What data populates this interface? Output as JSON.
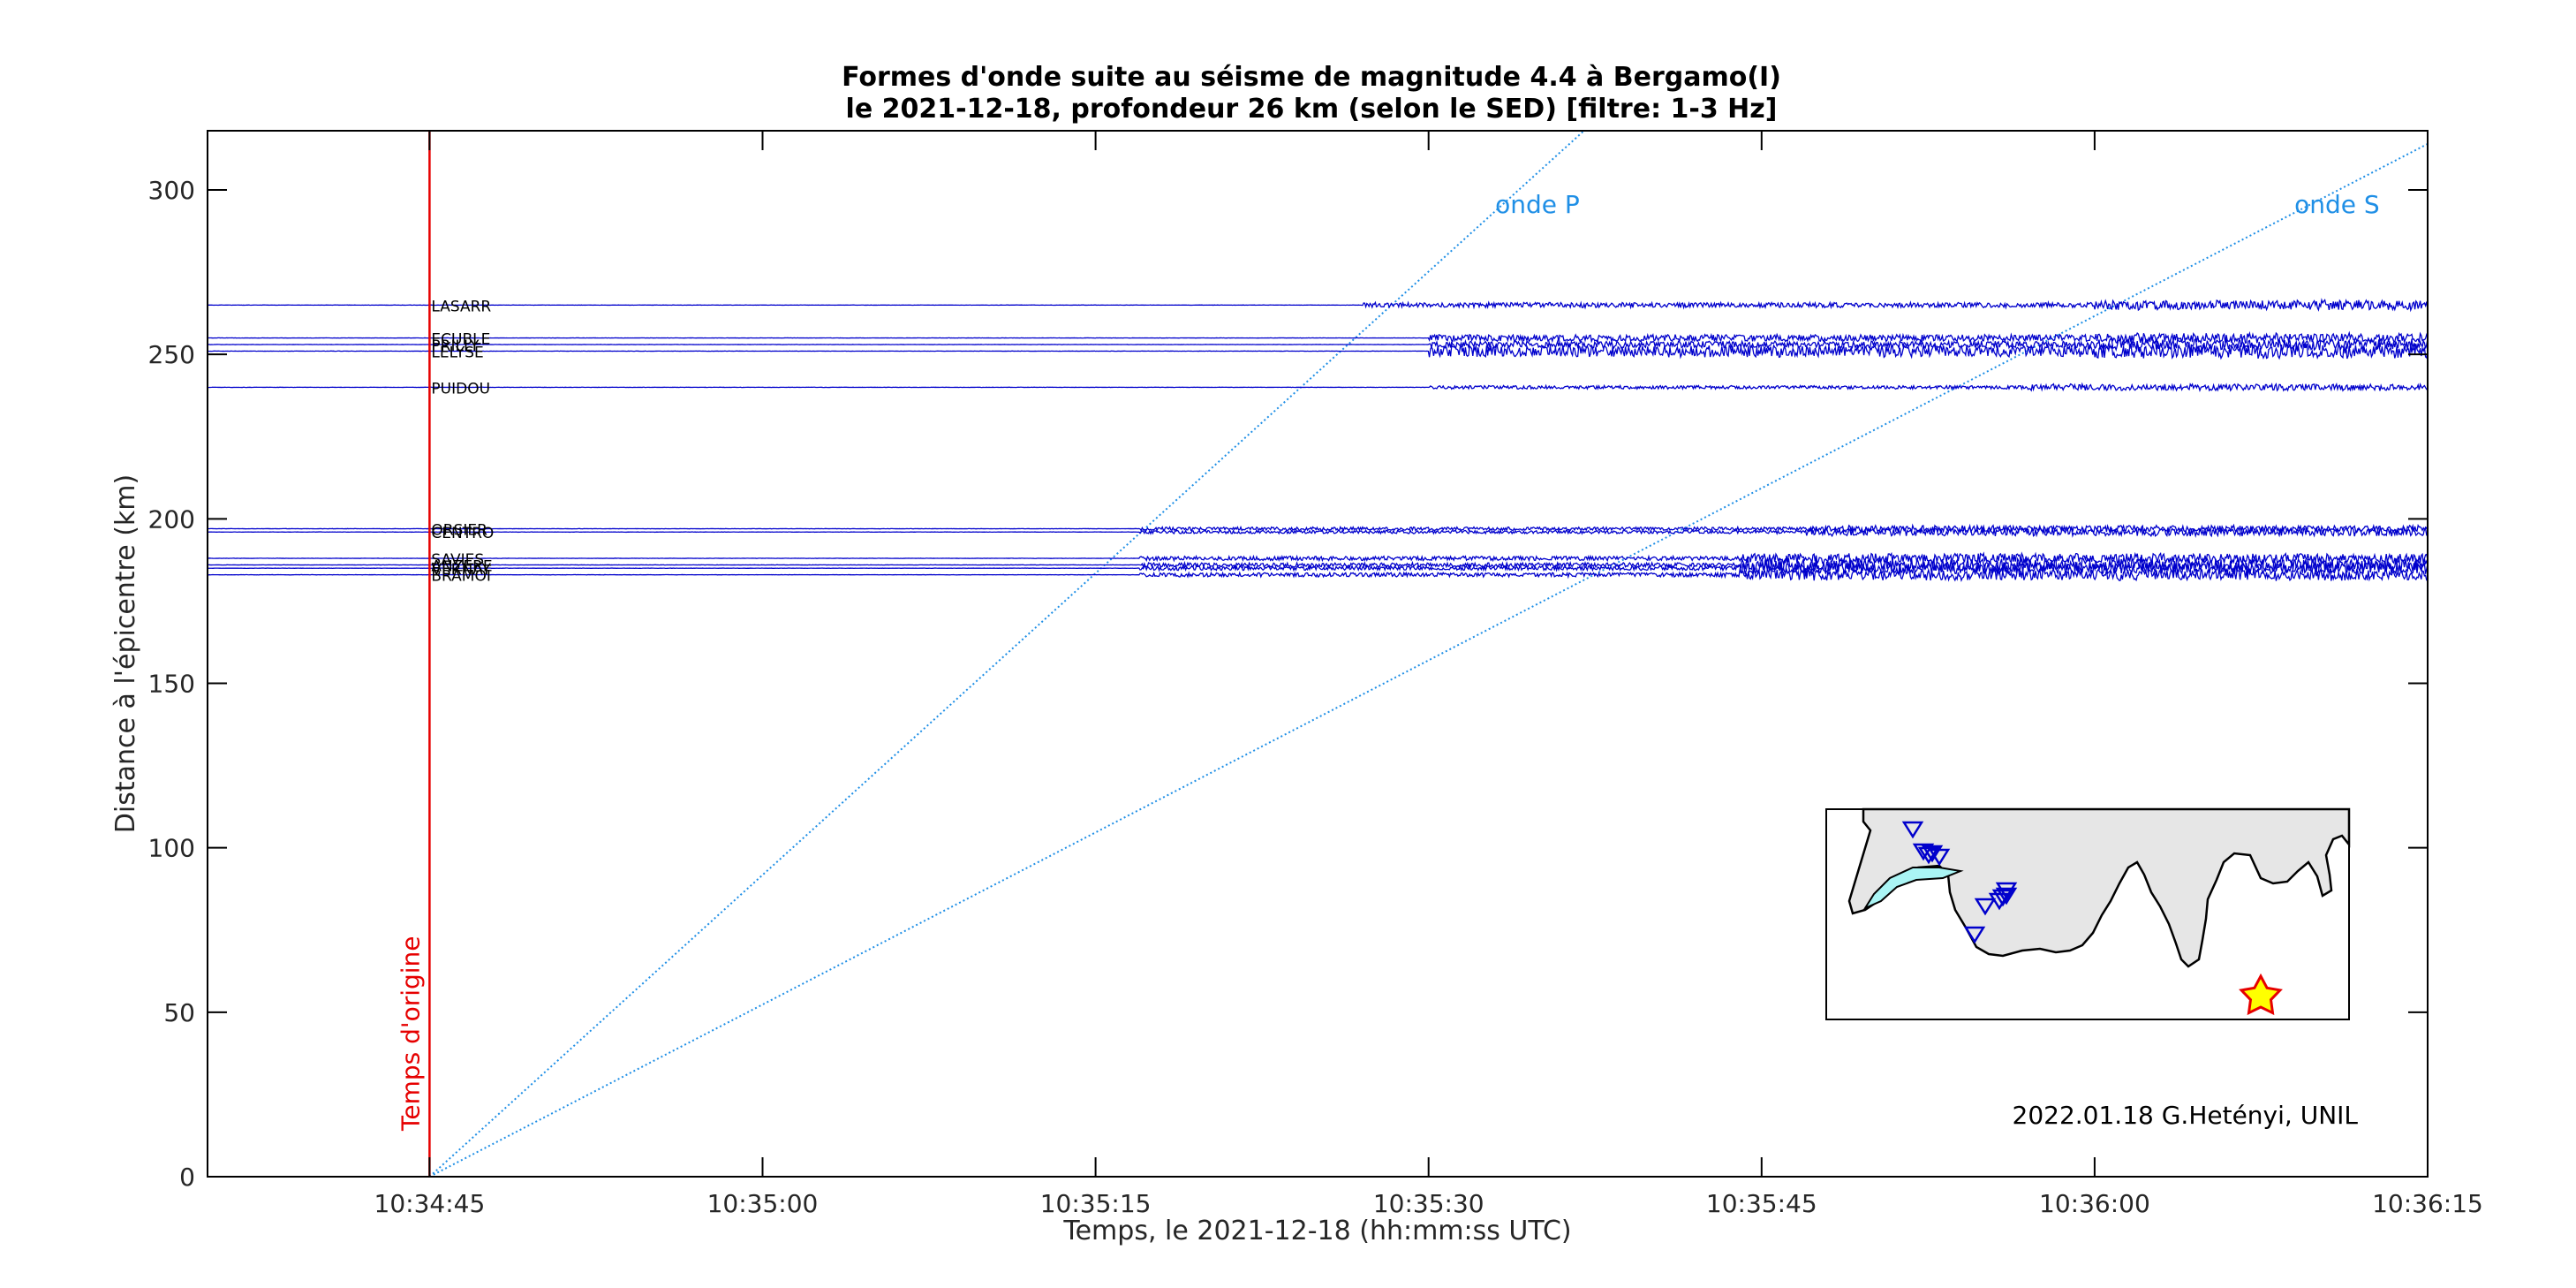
{
  "chart_data": {
    "type": "line",
    "title": "Formes d'onde suite au séisme de magnitude 4.4 à Bergamo(I)",
    "subtitle": "le 2021-12-18, profondeur 26 km (selon le SED) [filtre: 1-3 Hz]",
    "xlabel": "Temps, le 2021-12-18 (hh:mm:ss UTC)",
    "ylabel": "Distance à l'épicentre (km)",
    "x_unit": "seconds after 10:34:35 UTC",
    "xlim": [
      0,
      100
    ],
    "ylim": [
      0,
      318
    ],
    "x_ticks": [
      {
        "value": 10,
        "label": "10:34:45"
      },
      {
        "value": 25,
        "label": "10:35:00"
      },
      {
        "value": 40,
        "label": "10:35:15"
      },
      {
        "value": 55,
        "label": "10:35:30"
      },
      {
        "value": 70,
        "label": "10:35:45"
      },
      {
        "value": 85,
        "label": "10:36:00"
      },
      {
        "value": 100,
        "label": "10:36:15"
      }
    ],
    "y_ticks": [
      0,
      50,
      100,
      150,
      200,
      250,
      300
    ],
    "origin_time": {
      "x": 10.0,
      "label": "Temps d'origine",
      "color": "#e60000"
    },
    "wave_lines": [
      {
        "name": "onde P",
        "x0": 10.0,
        "y0": 0,
        "x1": 62.0,
        "y1": 318,
        "label_x": 58,
        "label_y": 293
      },
      {
        "name": "onde S",
        "x0": 10.0,
        "y0": 0,
        "x1": 100.0,
        "y1": 314,
        "label_x": 94,
        "label_y": 293
      }
    ],
    "stations": [
      {
        "name": "LASARR",
        "distance": 265,
        "p_onset": 52.0,
        "s_onset": 85.0,
        "amp_p": 3.0,
        "amp_s": 6.0
      },
      {
        "name": "ECUBLE",
        "distance": 255,
        "p_onset": 55.0,
        "s_onset": 85.0,
        "amp_p": 4.0,
        "amp_s": 6.0
      },
      {
        "name": "PRILLY",
        "distance": 253,
        "p_onset": 55.0,
        "s_onset": 85.0,
        "amp_p": 4.0,
        "amp_s": 7.0
      },
      {
        "name": "LELYSE",
        "distance": 251,
        "p_onset": 55.0,
        "s_onset": 85.0,
        "amp_p": 7.0,
        "amp_s": 9.0
      },
      {
        "name": "PUIDOU",
        "distance": 240,
        "p_onset": 55.0,
        "s_onset": 82.0,
        "amp_p": 2.0,
        "amp_s": 4.0
      },
      {
        "name": "ORSIER",
        "distance": 197,
        "p_onset": 42.0,
        "s_onset": 72.0,
        "amp_p": 2.0,
        "amp_s": 4.0
      },
      {
        "name": "CENTRO",
        "distance": 196,
        "p_onset": 42.0,
        "s_onset": 72.0,
        "amp_p": 2.0,
        "amp_s": 5.0
      },
      {
        "name": "SAVIES",
        "distance": 188,
        "p_onset": 42.0,
        "s_onset": 69.0,
        "amp_p": 2.5,
        "amp_s": 6.0
      },
      {
        "name": "ANZERE",
        "distance": 186,
        "p_onset": 42.0,
        "s_onset": 69.0,
        "amp_p": 2.5,
        "amp_s": 8.0
      },
      {
        "name": "VERNAY",
        "distance": 185,
        "p_onset": 42.0,
        "s_onset": 69.0,
        "amp_p": 2.5,
        "amp_s": 7.0
      },
      {
        "name": "BRAMOI",
        "distance": 183,
        "p_onset": 42.0,
        "s_onset": 69.0,
        "amp_p": 2.5,
        "amp_s": 7.0
      }
    ],
    "credit": "2022.01.18 G.Hetényi, UNIL",
    "grid": false,
    "colors": {
      "trace": "#0000cc",
      "wave_lines": "#1f8fe6",
      "origin": "#e60000",
      "map_fill": "#e6e6e6",
      "lake": "#aaf5f5",
      "star_fill": "#ffff00",
      "star_edge": "#e60000"
    },
    "inset_map": {
      "stations": 11,
      "epicenter_marker": "star"
    }
  }
}
